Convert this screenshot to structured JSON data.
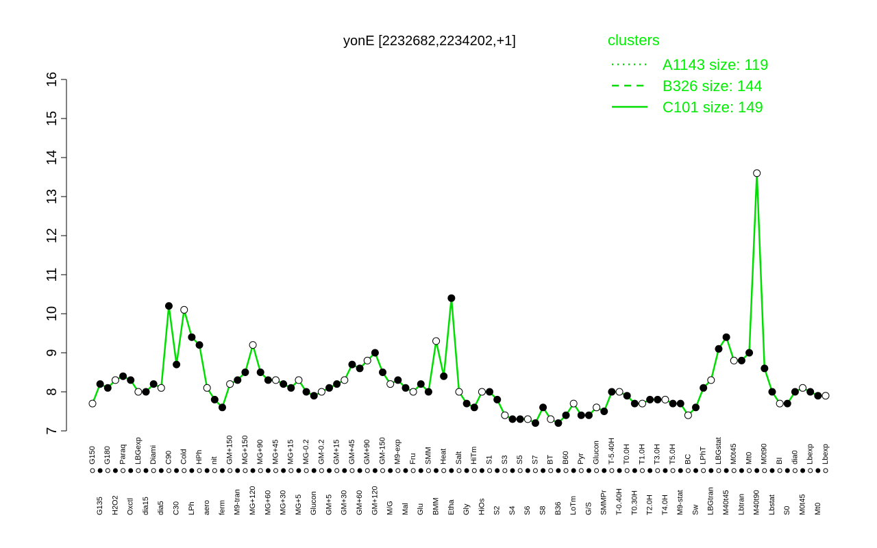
{
  "chart_data": {
    "type": "line",
    "title": "yonE [2232682,2234202,+1]",
    "legend_title": "clusters",
    "legend": [
      {
        "label": "A1143 size: 119",
        "dash": "dotted"
      },
      {
        "label": "B326 size: 144",
        "dash": "dashed"
      },
      {
        "label": "C101 size: 149",
        "dash": "solid"
      }
    ],
    "color": "#00dd00",
    "categories": [
      "G150",
      "G135",
      "G180",
      "H2O2",
      "Paraq",
      "Oxctl",
      "LBGexp",
      "dia15",
      "Diami",
      "dia5",
      "C90",
      "C30",
      "Cold",
      "LPh",
      "HPh",
      "aero",
      "nit",
      "ferm",
      "GM+150",
      "M9-tran",
      "MG+150",
      "MG+120",
      "MG+90",
      "MG+60",
      "MG+45",
      "MG+30",
      "MG+15",
      "MG+5",
      "MG-0.2",
      "Glucon",
      "GM-0.2",
      "GM+5",
      "GM+15",
      "GM+30",
      "GM+45",
      "GM+60",
      "GM+90",
      "GM+120",
      "GM-150",
      "M/G",
      "M9-exp",
      "Mal",
      "Fru",
      "Glu",
      "SMM",
      "BMM",
      "Heat",
      "Etha",
      "Salt",
      "Gly",
      "HiTm",
      "HiOs",
      "S1",
      "S2",
      "S3",
      "S4",
      "S5",
      "S6",
      "S7",
      "S8",
      "BT",
      "B36",
      "B60",
      "LoTm",
      "Pyr",
      "G/S",
      "Glucon",
      "SMMPr",
      "T-5.40H",
      "T-0.40H",
      "T0.0H",
      "T0.30H",
      "T1.0H",
      "T2.0H",
      "T3.0H",
      "T4.0H",
      "T5.0H",
      "M9-stat",
      "BC",
      "Sw",
      "LPhT",
      "LBGtran",
      "LBGstat",
      "M40t45",
      "M0t45",
      "Lbtran",
      "Mt0",
      "M40t90",
      "M0t90",
      "Lbstat",
      "BI",
      "S0",
      "dia0",
      "M0t45",
      "Lbexp",
      "Mt0",
      "Lbexp"
    ],
    "values": [
      7.7,
      8.2,
      8.1,
      8.3,
      8.4,
      8.3,
      8.0,
      8.0,
      8.2,
      8.1,
      10.2,
      8.7,
      10.1,
      9.4,
      9.2,
      8.1,
      7.8,
      7.6,
      8.2,
      8.3,
      8.5,
      9.2,
      8.5,
      8.3,
      8.3,
      8.2,
      8.1,
      8.3,
      8.0,
      7.9,
      8.0,
      8.1,
      8.2,
      8.3,
      8.7,
      8.6,
      8.8,
      9.0,
      8.5,
      8.2,
      8.3,
      8.1,
      8.0,
      8.2,
      8.0,
      9.3,
      8.4,
      10.4,
      8.0,
      7.7,
      7.6,
      8.0,
      8.0,
      7.8,
      7.4,
      7.3,
      7.3,
      7.3,
      7.2,
      7.6,
      7.3,
      7.2,
      7.4,
      7.7,
      7.4,
      7.4,
      7.6,
      7.5,
      8.0,
      8.0,
      7.9,
      7.7,
      7.7,
      7.8,
      7.8,
      7.8,
      7.7,
      7.7,
      7.4,
      7.6,
      8.1,
      8.3,
      9.1,
      9.4,
      8.8,
      8.8,
      9.0,
      13.6,
      8.6,
      8.0,
      7.7,
      7.7,
      8.0,
      8.1,
      8.0,
      7.9,
      7.9
    ],
    "ylim": [
      7,
      16
    ],
    "yticks": [
      7,
      8,
      9,
      10,
      11,
      12,
      13,
      14,
      15,
      16
    ]
  }
}
